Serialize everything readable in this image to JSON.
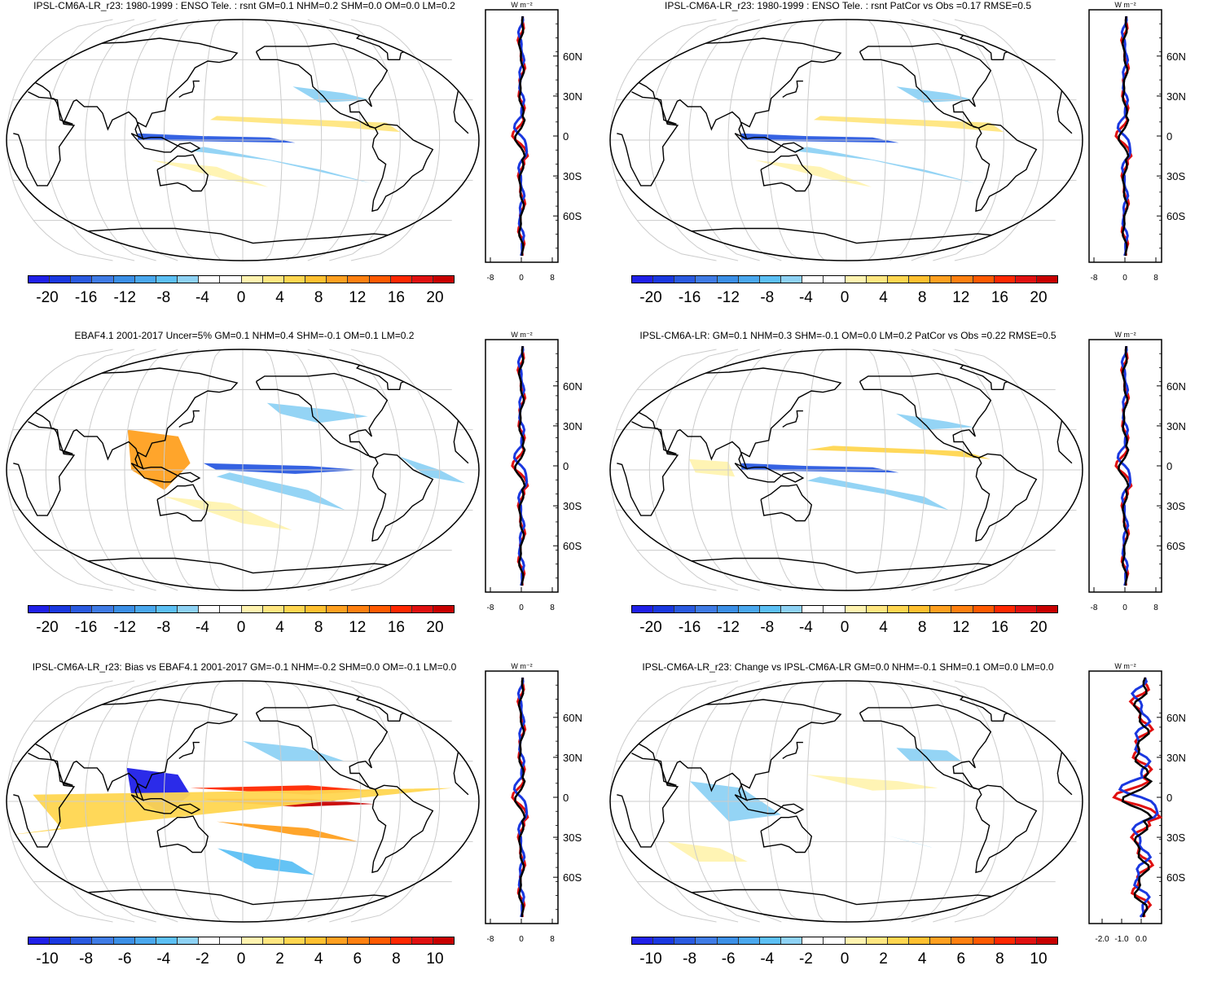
{
  "colorbar_colors": [
    "#2020e8",
    "#1a38e0",
    "#2a5ae0",
    "#3f7be5",
    "#3b8fe6",
    "#4aa8ee",
    "#5cc0f4",
    "#8ed2f4",
    "#ffffff",
    "#ffffff",
    "#fff3b0",
    "#ffe680",
    "#ffd650",
    "#ffc030",
    "#ffa020",
    "#ff8010",
    "#ff5a00",
    "#ff2800",
    "#e01010",
    "#c80000"
  ],
  "profile_unit_label": "W m⁻²",
  "latitude_labels": [
    "60N",
    "30N",
    "0",
    "30S",
    "60S"
  ],
  "panels": [
    {
      "id": "model-enso",
      "title": "IPSL-CM6A-LR_r23: 1980-1999 : ENSO Tele. : rsnt GM=0.1 NHM=0.2 SHM=0.0 OM=0.0 LM=0.2",
      "colorbar_ticks": [
        "-20",
        "-16",
        "-12",
        "-8",
        "-4",
        "0",
        "4",
        "8",
        "12",
        "16",
        "20"
      ],
      "profile_ticks": [
        "-8",
        "0",
        "8"
      ]
    },
    {
      "id": "model-enso-patcor",
      "title": "IPSL-CM6A-LR_r23: 1980-1999 : ENSO Tele. : rsnt PatCor vs Obs =0.17 RMSE=0.5",
      "colorbar_ticks": [
        "-20",
        "-16",
        "-12",
        "-8",
        "-4",
        "0",
        "4",
        "8",
        "12",
        "16",
        "20"
      ],
      "profile_ticks": [
        "-8",
        "0",
        "8"
      ]
    },
    {
      "id": "obs-ebaf",
      "title": "EBAF4.1 2001-2017 Uncer=5% GM=0.1 NHM=0.4 SHM=-0.1 OM=0.1 LM=0.2",
      "colorbar_ticks": [
        "-20",
        "-16",
        "-12",
        "-8",
        "-4",
        "0",
        "4",
        "8",
        "12",
        "16",
        "20"
      ],
      "profile_ticks": [
        "-8",
        "0",
        "8"
      ]
    },
    {
      "id": "reference-model",
      "title": "IPSL-CM6A-LR: GM=0.1 NHM=0.3 SHM=-0.1 OM=0.0 LM=0.2 PatCor vs Obs =0.22 RMSE=0.5",
      "colorbar_ticks": [
        "-20",
        "-16",
        "-12",
        "-8",
        "-4",
        "0",
        "4",
        "8",
        "12",
        "16",
        "20"
      ],
      "profile_ticks": [
        "-8",
        "0",
        "8"
      ]
    },
    {
      "id": "bias",
      "title": "IPSL-CM6A-LR_r23: Bias vs EBAF4.1 2001-2017 GM=-0.1 NHM=-0.2 SHM=0.0 OM=-0.1 LM=0.0",
      "colorbar_ticks": [
        "-10",
        "-8",
        "-6",
        "-4",
        "-2",
        "0",
        "2",
        "4",
        "6",
        "8",
        "10"
      ],
      "profile_ticks": [
        "-8",
        "0",
        "8"
      ]
    },
    {
      "id": "change",
      "title": "IPSL-CM6A-LR_r23: Change vs IPSL-CM6A-LR GM=0.0 NHM=-0.1 SHM=0.1 OM=0.0 LM=0.0",
      "colorbar_ticks": [
        "-10",
        "-8",
        "-6",
        "-4",
        "-2",
        "0",
        "2",
        "4",
        "6",
        "8",
        "10"
      ],
      "profile_ticks": [
        "-2.0",
        "-1.0",
        "0.0"
      ]
    }
  ]
}
